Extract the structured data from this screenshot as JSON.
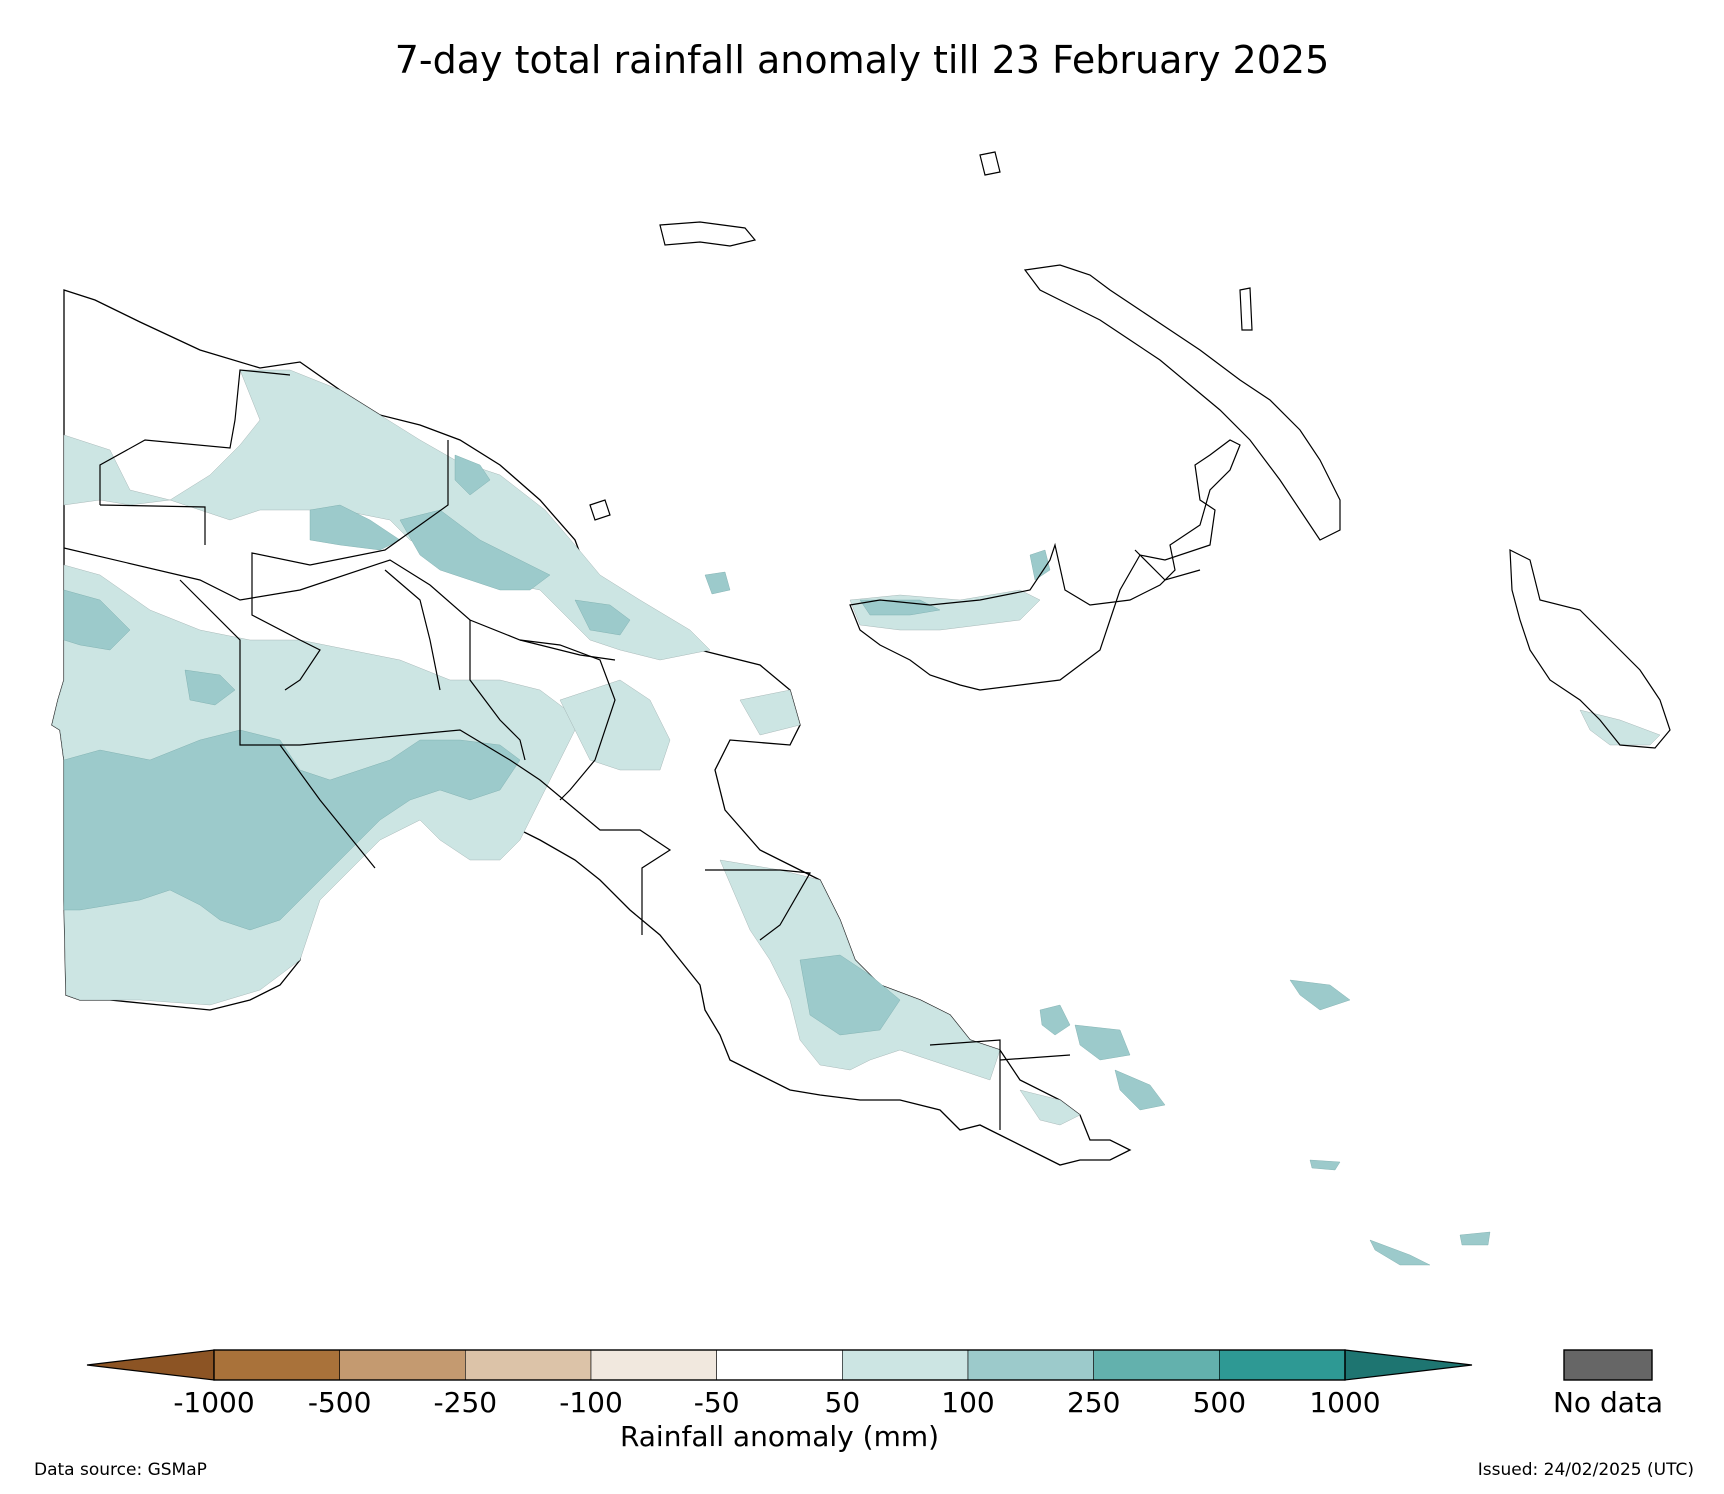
{
  "title": "7-day total rainfall anomaly till 23 February 2025",
  "legend": {
    "label": "Rainfall anomaly (mm)",
    "ticks": [
      "-1000",
      "-500",
      "-250",
      "-100",
      "-50",
      "50",
      "100",
      "250",
      "500",
      "1000"
    ],
    "bins": [
      {
        "range": "< -1000",
        "color": "#8c5424"
      },
      {
        "range": "-1000 to -500",
        "color": "#a9723a"
      },
      {
        "range": "-500 to -250",
        "color": "#c49a70"
      },
      {
        "range": "-250 to -100",
        "color": "#dcc3a8"
      },
      {
        "range": "-100 to -50",
        "color": "#f1e8de"
      },
      {
        "range": "-50 to 50",
        "color": "#ffffff"
      },
      {
        "range": "50 to 100",
        "color": "#cce5e3"
      },
      {
        "range": "100 to 250",
        "color": "#9ccacb"
      },
      {
        "range": "250 to 500",
        "color": "#63b1ad"
      },
      {
        "range": "500 to 1000",
        "color": "#2e9994"
      },
      {
        "range": "> 1000",
        "color": "#1e7571"
      }
    ],
    "no_data_label": "No data",
    "no_data_color": "#666666"
  },
  "footer": {
    "source": "Data source: GSMaP",
    "issued": "Issued: 24/02/2025 (UTC)"
  },
  "colors": {
    "light_anomaly": "#cce5e3",
    "medium_anomaly": "#9ccacb",
    "outline": "#000000"
  }
}
